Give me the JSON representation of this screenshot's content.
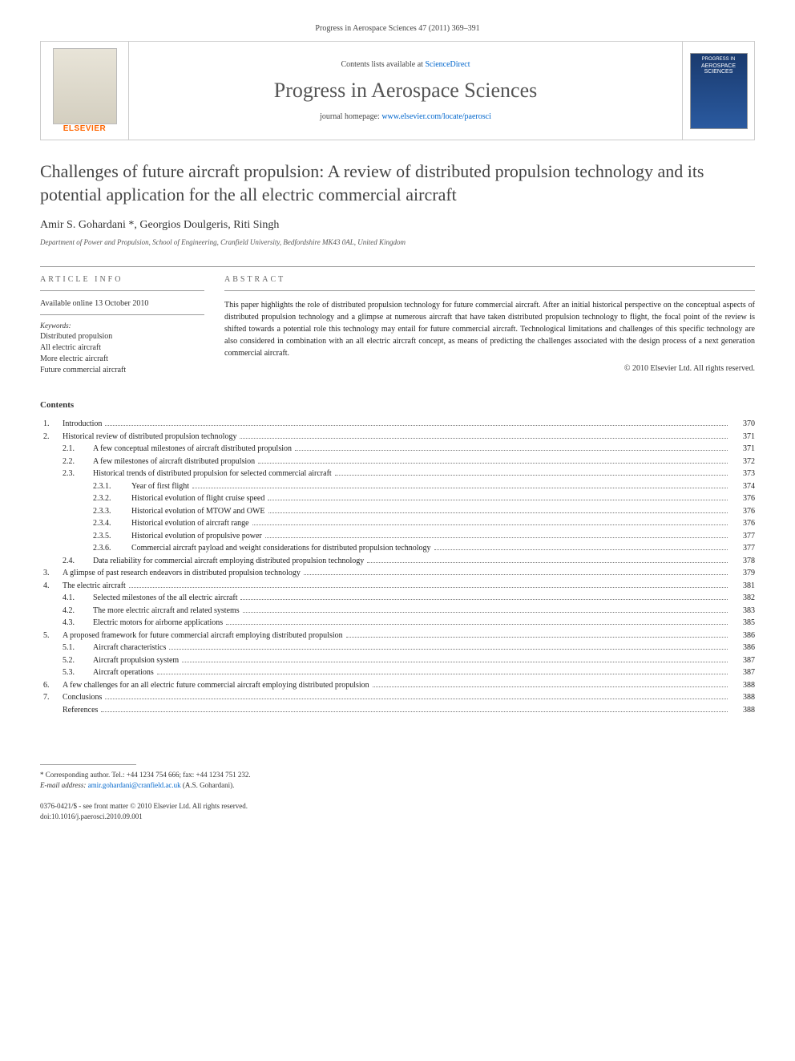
{
  "citation": "Progress in Aerospace Sciences 47 (2011) 369–391",
  "header": {
    "contents_prefix": "Contents lists available at ",
    "contents_link": "ScienceDirect",
    "journal": "Progress in Aerospace Sciences",
    "homepage_prefix": "journal homepage: ",
    "homepage_url": "www.elsevier.com/locate/paerosci",
    "publisher": "ELSEVIER",
    "cover_top": "PROGRESS IN",
    "cover_title": "AEROSPACE SCIENCES"
  },
  "article": {
    "title": "Challenges of future aircraft propulsion: A review of distributed propulsion technology and its potential application for the all electric commercial aircraft",
    "authors": "Amir S. Gohardani *, Georgios Doulgeris, Riti Singh",
    "affiliation": "Department of Power and Propulsion, School of Engineering, Cranfield University, Bedfordshire MK43 0AL, United Kingdom"
  },
  "info": {
    "heading": "ARTICLE INFO",
    "available": "Available online 13 October 2010",
    "keywords_label": "Keywords:",
    "keywords": [
      "Distributed propulsion",
      "All electric aircraft",
      "More electric aircraft",
      "Future commercial aircraft"
    ]
  },
  "abstract": {
    "heading": "ABSTRACT",
    "text": "This paper highlights the role of distributed propulsion technology for future commercial aircraft. After an initial historical perspective on the conceptual aspects of distributed propulsion technology and a glimpse at numerous aircraft that have taken distributed propulsion technology to flight, the focal point of the review is shifted towards a potential role this technology may entail for future commercial aircraft. Technological limitations and challenges of this specific technology are also considered in combination with an all electric aircraft concept, as means of predicting the challenges associated with the design process of a next generation commercial aircraft.",
    "copyright": "© 2010 Elsevier Ltd. All rights reserved."
  },
  "contents": {
    "heading": "Contents",
    "items": [
      {
        "level": 1,
        "num": "1.",
        "title": "Introduction",
        "page": "370"
      },
      {
        "level": 1,
        "num": "2.",
        "title": "Historical review of distributed propulsion technology",
        "page": "371"
      },
      {
        "level": 2,
        "num": "2.1.",
        "title": "A few conceptual milestones of aircraft distributed propulsion",
        "page": "371"
      },
      {
        "level": 2,
        "num": "2.2.",
        "title": "A few milestones of aircraft distributed propulsion",
        "page": "372"
      },
      {
        "level": 2,
        "num": "2.3.",
        "title": "Historical trends of distributed propulsion for selected commercial aircraft",
        "page": "373"
      },
      {
        "level": 3,
        "num": "2.3.1.",
        "title": "Year of first flight",
        "page": "374"
      },
      {
        "level": 3,
        "num": "2.3.2.",
        "title": "Historical evolution of flight cruise speed",
        "page": "376"
      },
      {
        "level": 3,
        "num": "2.3.3.",
        "title": "Historical evolution of MTOW and OWE",
        "page": "376"
      },
      {
        "level": 3,
        "num": "2.3.4.",
        "title": "Historical evolution of aircraft range",
        "page": "376"
      },
      {
        "level": 3,
        "num": "2.3.5.",
        "title": "Historical evolution of propulsive power",
        "page": "377"
      },
      {
        "level": 3,
        "num": "2.3.6.",
        "title": "Commercial aircraft payload and weight considerations for distributed propulsion technology",
        "page": "377"
      },
      {
        "level": 2,
        "num": "2.4.",
        "title": "Data reliability for commercial aircraft employing distributed propulsion technology",
        "page": "378"
      },
      {
        "level": 1,
        "num": "3.",
        "title": "A glimpse of past research endeavors in distributed propulsion technology",
        "page": "379"
      },
      {
        "level": 1,
        "num": "4.",
        "title": "The electric aircraft",
        "page": "381"
      },
      {
        "level": 2,
        "num": "4.1.",
        "title": "Selected milestones of the all electric aircraft",
        "page": "382"
      },
      {
        "level": 2,
        "num": "4.2.",
        "title": "The more electric aircraft and related systems",
        "page": "383"
      },
      {
        "level": 2,
        "num": "4.3.",
        "title": "Electric motors for airborne applications",
        "page": "385"
      },
      {
        "level": 1,
        "num": "5.",
        "title": "A proposed framework for future commercial aircraft employing distributed propulsion",
        "page": "386"
      },
      {
        "level": 2,
        "num": "5.1.",
        "title": "Aircraft characteristics",
        "page": "386"
      },
      {
        "level": 2,
        "num": "5.2.",
        "title": "Aircraft propulsion system",
        "page": "387"
      },
      {
        "level": 2,
        "num": "5.3.",
        "title": "Aircraft operations",
        "page": "387"
      },
      {
        "level": 1,
        "num": "6.",
        "title": "A few challenges for an all electric future commercial aircraft employing distributed propulsion",
        "page": "388"
      },
      {
        "level": 1,
        "num": "7.",
        "title": "Conclusions",
        "page": "388"
      },
      {
        "level": 1,
        "num": "",
        "title": "References",
        "page": "388"
      }
    ]
  },
  "footer": {
    "corr_label": "* Corresponding author. Tel.: ",
    "tel": "+44 1234 754 666",
    "fax_label": "; fax: ",
    "fax": "+44 1234 751 232.",
    "email_label": "E-mail address: ",
    "email": "amir.gohardani@cranfield.ac.uk",
    "email_suffix": " (A.S. Gohardani).",
    "front_matter_1": "0376-0421/$ - see front matter © 2010 Elsevier Ltd. All rights reserved.",
    "doi": "doi:10.1016/j.paerosci.2010.09.001"
  },
  "colors": {
    "link": "#0066cc",
    "text": "#333333",
    "border": "#999999",
    "elsevier": "#ff6600"
  }
}
